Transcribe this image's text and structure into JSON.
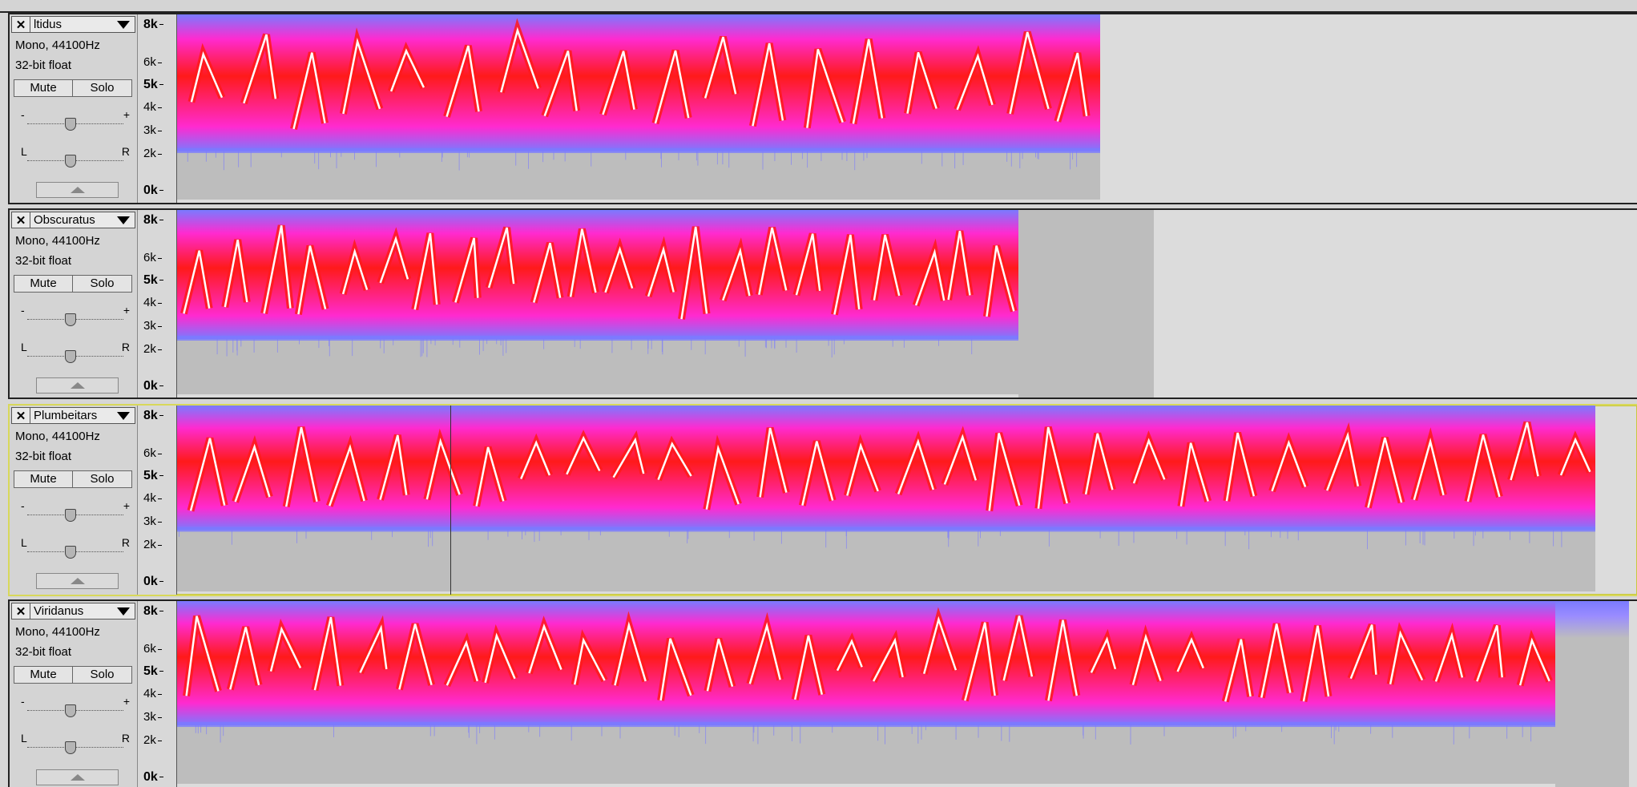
{
  "tracks": [
    {
      "name": "ltidus",
      "format": "Mono, 44100Hz",
      "bitdepth": "32-bit float",
      "mute_label": "Mute",
      "solo_label": "Solo",
      "gain_minus": "-",
      "gain_plus": "+",
      "pan_left": "L",
      "pan_right": "R",
      "ruler": [
        "8k",
        "6k",
        "5k",
        "4k",
        "3k",
        "2k",
        "0k"
      ]
    },
    {
      "name": "Obscuratus",
      "format": "Mono, 44100Hz",
      "bitdepth": "32-bit float",
      "mute_label": "Mute",
      "solo_label": "Solo",
      "gain_minus": "-",
      "gain_plus": "+",
      "pan_left": "L",
      "pan_right": "R",
      "ruler": [
        "8k",
        "6k",
        "5k",
        "4k",
        "3k",
        "2k",
        "0k"
      ]
    },
    {
      "name": "Plumbeitars",
      "format": "Mono, 44100Hz",
      "bitdepth": "32-bit float",
      "mute_label": "Mute",
      "solo_label": "Solo",
      "gain_minus": "-",
      "gain_plus": "+",
      "pan_left": "L",
      "pan_right": "R",
      "ruler": [
        "8k",
        "6k",
        "5k",
        "4k",
        "3k",
        "2k",
        "0k"
      ]
    },
    {
      "name": "Viridanus",
      "format": "Mono, 44100Hz",
      "bitdepth": "32-bit float",
      "mute_label": "Mute",
      "solo_label": "Solo",
      "gain_minus": "-",
      "gain_plus": "+",
      "pan_left": "L",
      "pan_right": "R",
      "ruler": [
        "8k",
        "6k",
        "5k",
        "4k",
        "3k",
        "2k",
        "0k"
      ]
    }
  ],
  "colors": {
    "spectrogram_low": "#7a7aff",
    "spectrogram_mid": "#ff2ad0",
    "spectrogram_high": "#ff1a1a",
    "spectrogram_peak": "#ffffff",
    "empty_region": "#bdbdbd",
    "selected_track_border": "#d8d85a"
  },
  "icons": {
    "close": "close-icon",
    "menu": "dropdown-arrow-icon",
    "collapse": "collapse-arrow-icon"
  }
}
